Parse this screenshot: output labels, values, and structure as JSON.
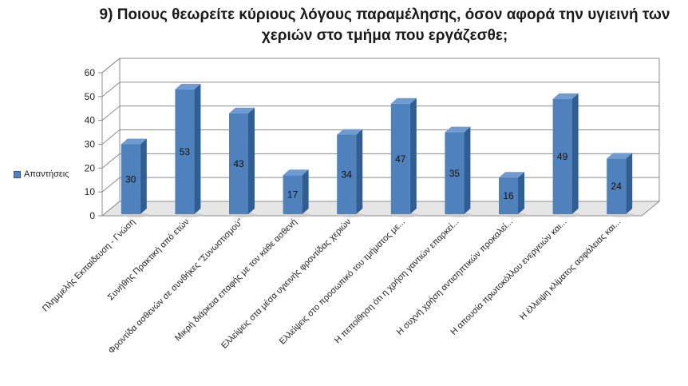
{
  "chart_data": {
    "type": "bar",
    "title": "9) Ποιους θεωρείτε κύριους λόγους παραμέλησης,  όσον αφορά την υγιεινή των χεριών στο τμήμα που εργάζεσθε;",
    "categories": [
      "Πλημμελής Εκπαίδευση - Γνώση",
      "Συνήθης Πρακτική από ετών",
      "Φροντίδα ασθενών σε συνθήκες \"Συνωστισμού\"",
      "Μικρή διάρκεια επαφής με τον κάθε ασθενή",
      "Ελλείψεις στα μέσα υγιεινής φροντίδας χεριών",
      "Ελλείψεις στο προσωπικό του τμήματος με...",
      "Η πεποίθηση ότι η χρήση γαντιών επαρκεί...",
      "Η συχνή χρήση αντισηπτικών προκαλεί...",
      "Η απουσία πρωτοκόλλου ενεργειών και...",
      "Η έλλειψη κλίματος ασφάλειας και..."
    ],
    "series": [
      {
        "name": "Απαντήσεις",
        "values": [
          30,
          53,
          43,
          17,
          34,
          47,
          35,
          16,
          49,
          24
        ],
        "color": "#4f81bd"
      }
    ],
    "y_ticks": [
      "0",
      "10",
      "20",
      "30",
      "40",
      "50",
      "60"
    ],
    "ylim": [
      0,
      60
    ],
    "grid": true,
    "legend": "left"
  }
}
